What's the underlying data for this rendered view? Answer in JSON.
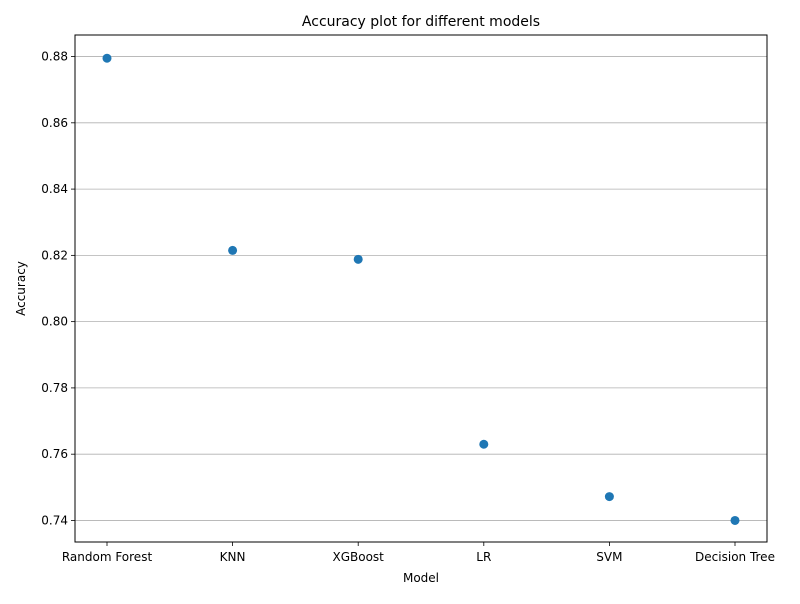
{
  "chart_data": {
    "type": "scatter",
    "title": "Accuracy plot for different models",
    "xlabel": "Model",
    "ylabel": "Accuracy",
    "categories": [
      "Random Forest",
      "KNN",
      "XGBoost",
      "LR",
      "SVM",
      "Decision Tree"
    ],
    "values": [
      0.8795,
      0.8215,
      0.8188,
      0.763,
      0.7472,
      0.74
    ],
    "ylim": [
      0.7335,
      0.8865
    ],
    "yticks": [
      0.74,
      0.76,
      0.78,
      0.8,
      0.82,
      0.84,
      0.86,
      0.88
    ],
    "ytick_labels": [
      "0.74",
      "0.76",
      "0.78",
      "0.80",
      "0.82",
      "0.84",
      "0.86",
      "0.88"
    ],
    "grid": "y",
    "marker_color": "#1f77b4",
    "grid_color": "#b0b0b0"
  }
}
